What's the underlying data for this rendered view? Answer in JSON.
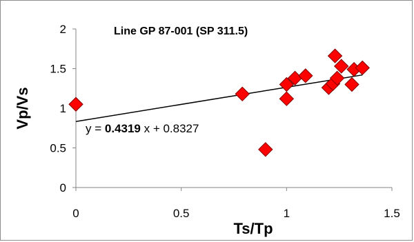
{
  "chart_data": {
    "type": "scatter",
    "title": "Line GP 87-001 (SP 311.5)",
    "xlabel": "Ts/Tp",
    "ylabel": "Vp/Vs",
    "xlim": [
      0,
      1.5
    ],
    "ylim": [
      0,
      2
    ],
    "xticks": [
      0,
      0.5,
      1,
      1.5
    ],
    "xtick_labels": [
      "0",
      "0.5",
      "1",
      "1.5"
    ],
    "yticks": [
      0,
      0.5,
      1,
      1.5,
      2
    ],
    "ytick_labels": [
      "0",
      "0.5",
      "1",
      "1.5",
      "2"
    ],
    "grid": false,
    "legend": "none",
    "marker": "diamond",
    "marker_color": "#ff0000",
    "marker_edge": "#800000",
    "points": [
      {
        "x": 0.0,
        "y": 1.05
      },
      {
        "x": 0.79,
        "y": 1.18
      },
      {
        "x": 0.9,
        "y": 0.48
      },
      {
        "x": 1.0,
        "y": 1.12
      },
      {
        "x": 1.0,
        "y": 1.3
      },
      {
        "x": 1.04,
        "y": 1.38
      },
      {
        "x": 1.09,
        "y": 1.41
      },
      {
        "x": 1.2,
        "y": 1.26
      },
      {
        "x": 1.22,
        "y": 1.31
      },
      {
        "x": 1.23,
        "y": 1.66
      },
      {
        "x": 1.24,
        "y": 1.38
      },
      {
        "x": 1.26,
        "y": 1.53
      },
      {
        "x": 1.31,
        "y": 1.3
      },
      {
        "x": 1.32,
        "y": 1.49
      },
      {
        "x": 1.36,
        "y": 1.51
      }
    ],
    "trendline": {
      "slope": 0.4319,
      "intercept": 0.8327,
      "x_range": [
        0,
        1.36
      ],
      "color": "#000000",
      "equation_prefix": "y = ",
      "equation_slope": "0.4319",
      "equation_suffix": " x + 0.8327"
    }
  }
}
